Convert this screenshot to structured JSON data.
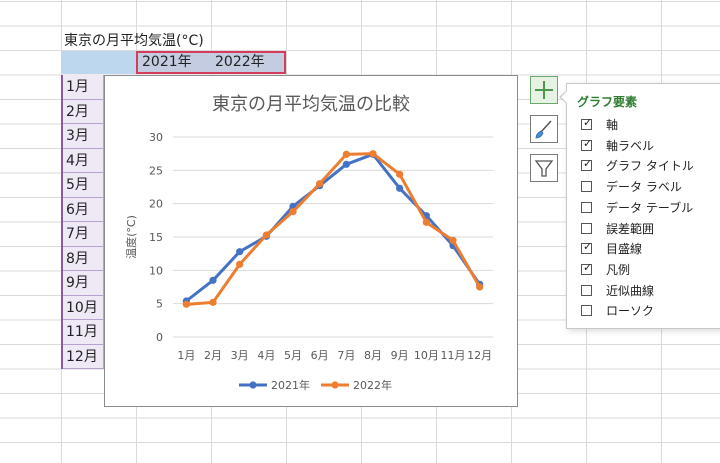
{
  "sheet": {
    "title": "東京の月平均気温(°C)",
    "headers": [
      "",
      "2021年",
      "2022年"
    ],
    "months": [
      "1月",
      "2月",
      "3月",
      "4月",
      "5月",
      "6月",
      "7月",
      "8月",
      "9月",
      "10月",
      "11月",
      "12月"
    ]
  },
  "chart_data": {
    "type": "line",
    "title": "東京の月平均気温の比較",
    "xlabel": "",
    "ylabel": "温度(°C)",
    "categories": [
      "1月",
      "2月",
      "3月",
      "4月",
      "5月",
      "6月",
      "7月",
      "8月",
      "9月",
      "10月",
      "11月",
      "12月"
    ],
    "ylim": [
      0,
      30
    ],
    "yticks": [
      0,
      5,
      10,
      15,
      20,
      25,
      30
    ],
    "grid": true,
    "legend": "bottom",
    "series": [
      {
        "name": "2021年",
        "color": "#4472c4",
        "values": [
          5.4,
          8.5,
          12.8,
          15.1,
          19.6,
          22.7,
          25.9,
          27.4,
          22.3,
          18.2,
          13.7,
          7.9
        ]
      },
      {
        "name": "2022年",
        "color": "#ed7d31",
        "values": [
          4.9,
          5.2,
          10.9,
          15.3,
          18.8,
          23.0,
          27.4,
          27.5,
          24.4,
          17.2,
          14.5,
          7.5
        ]
      }
    ]
  },
  "side_buttons": [
    {
      "name": "chart-elements-plus-icon"
    },
    {
      "name": "chart-styles-brush-icon"
    },
    {
      "name": "chart-filters-funnel-icon"
    }
  ],
  "pane": {
    "title": "グラフ要素",
    "items": [
      {
        "label": "軸",
        "checked": true
      },
      {
        "label": "軸ラベル",
        "checked": true
      },
      {
        "label": "グラフ タイトル",
        "checked": true
      },
      {
        "label": "データ ラベル",
        "checked": false
      },
      {
        "label": "データ テーブル",
        "checked": false
      },
      {
        "label": "誤差範囲",
        "checked": false
      },
      {
        "label": "目盛線",
        "checked": true
      },
      {
        "label": "凡例",
        "checked": true
      },
      {
        "label": "近似曲線",
        "checked": false
      },
      {
        "label": "ローソク",
        "checked": false
      }
    ]
  }
}
